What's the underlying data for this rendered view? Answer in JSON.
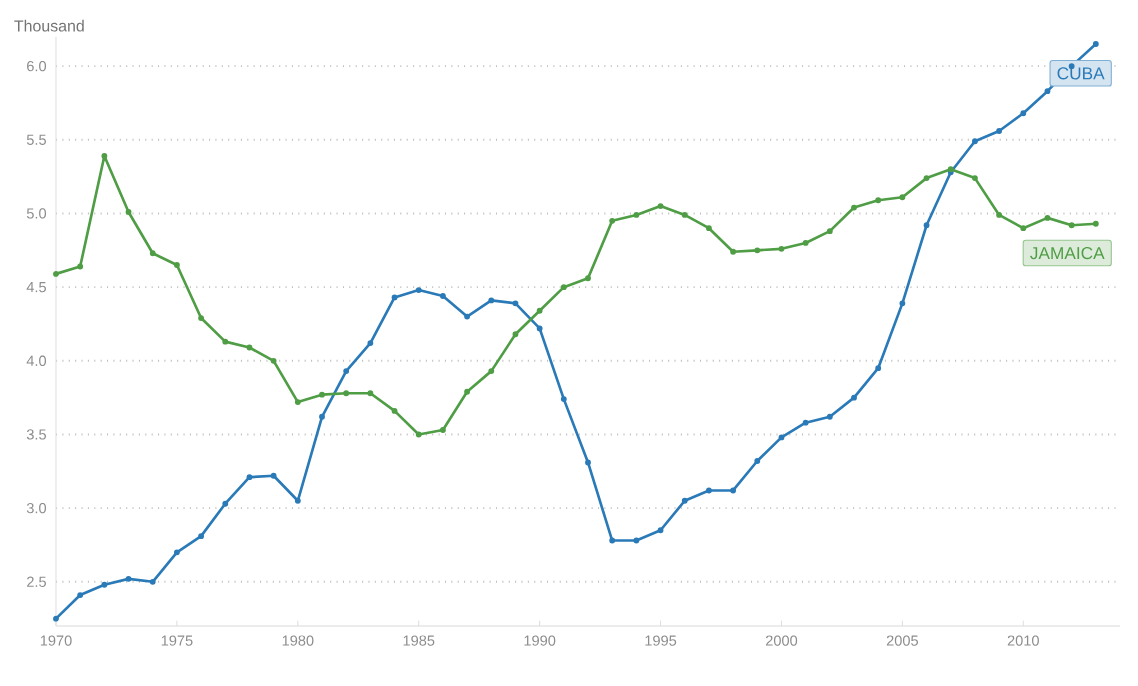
{
  "chart_data": {
    "type": "line",
    "ylabel": "Thousand",
    "x": [
      1970,
      1971,
      1972,
      1973,
      1974,
      1975,
      1976,
      1977,
      1978,
      1979,
      1980,
      1981,
      1982,
      1983,
      1984,
      1985,
      1986,
      1987,
      1988,
      1989,
      1990,
      1991,
      1992,
      1993,
      1994,
      1995,
      1996,
      1997,
      1998,
      1999,
      2000,
      2001,
      2002,
      2003,
      2004,
      2005,
      2006,
      2007,
      2008,
      2009,
      2010,
      2011,
      2012,
      2013
    ],
    "series": [
      {
        "name": "CUBA",
        "color": "#2a7ab8",
        "values": [
          2.25,
          2.41,
          2.48,
          2.52,
          2.5,
          2.7,
          2.81,
          3.03,
          3.21,
          3.22,
          3.05,
          3.62,
          3.93,
          4.12,
          4.43,
          4.48,
          4.44,
          4.3,
          4.41,
          4.39,
          4.22,
          3.74,
          3.31,
          2.78,
          2.78,
          2.85,
          3.05,
          3.12,
          3.12,
          3.32,
          3.48,
          3.58,
          3.62,
          3.75,
          3.95,
          4.39,
          4.92,
          5.28,
          5.49,
          5.56,
          5.68,
          5.83,
          6.0,
          6.15
        ]
      },
      {
        "name": "JAMAICA",
        "color": "#4f9d45",
        "values": [
          4.59,
          4.64,
          5.39,
          5.01,
          4.73,
          4.65,
          4.29,
          4.13,
          4.09,
          4.0,
          3.72,
          3.77,
          3.78,
          3.78,
          3.66,
          3.5,
          3.53,
          3.79,
          3.93,
          4.18,
          4.34,
          4.5,
          4.56,
          4.95,
          4.99,
          5.05,
          4.99,
          4.9,
          4.74,
          4.75,
          4.76,
          4.8,
          4.88,
          5.04,
          5.09,
          5.11,
          5.24,
          5.3,
          5.24,
          4.99,
          4.9,
          4.97,
          4.92,
          4.93
        ]
      }
    ],
    "xlim": [
      1970,
      2014
    ],
    "ylim": [
      2.2,
      6.2
    ],
    "xticks": [
      1970,
      1975,
      1980,
      1985,
      1990,
      1995,
      2000,
      2005,
      2010
    ],
    "yticks": [
      {
        "value": 2.5,
        "label": "2.5"
      },
      {
        "value": 3,
        "label": "3.0"
      },
      {
        "value": 3.5,
        "label": "3.5"
      },
      {
        "value": 4,
        "label": "4.0"
      },
      {
        "value": 4.5,
        "label": "4.5"
      },
      {
        "value": 5,
        "label": "5.0"
      },
      {
        "value": 5.5,
        "label": "5.5"
      },
      {
        "value": 6,
        "label": "6.0"
      }
    ],
    "grid": "y",
    "legend": false,
    "marker": "circle",
    "line_style": "solid"
  }
}
